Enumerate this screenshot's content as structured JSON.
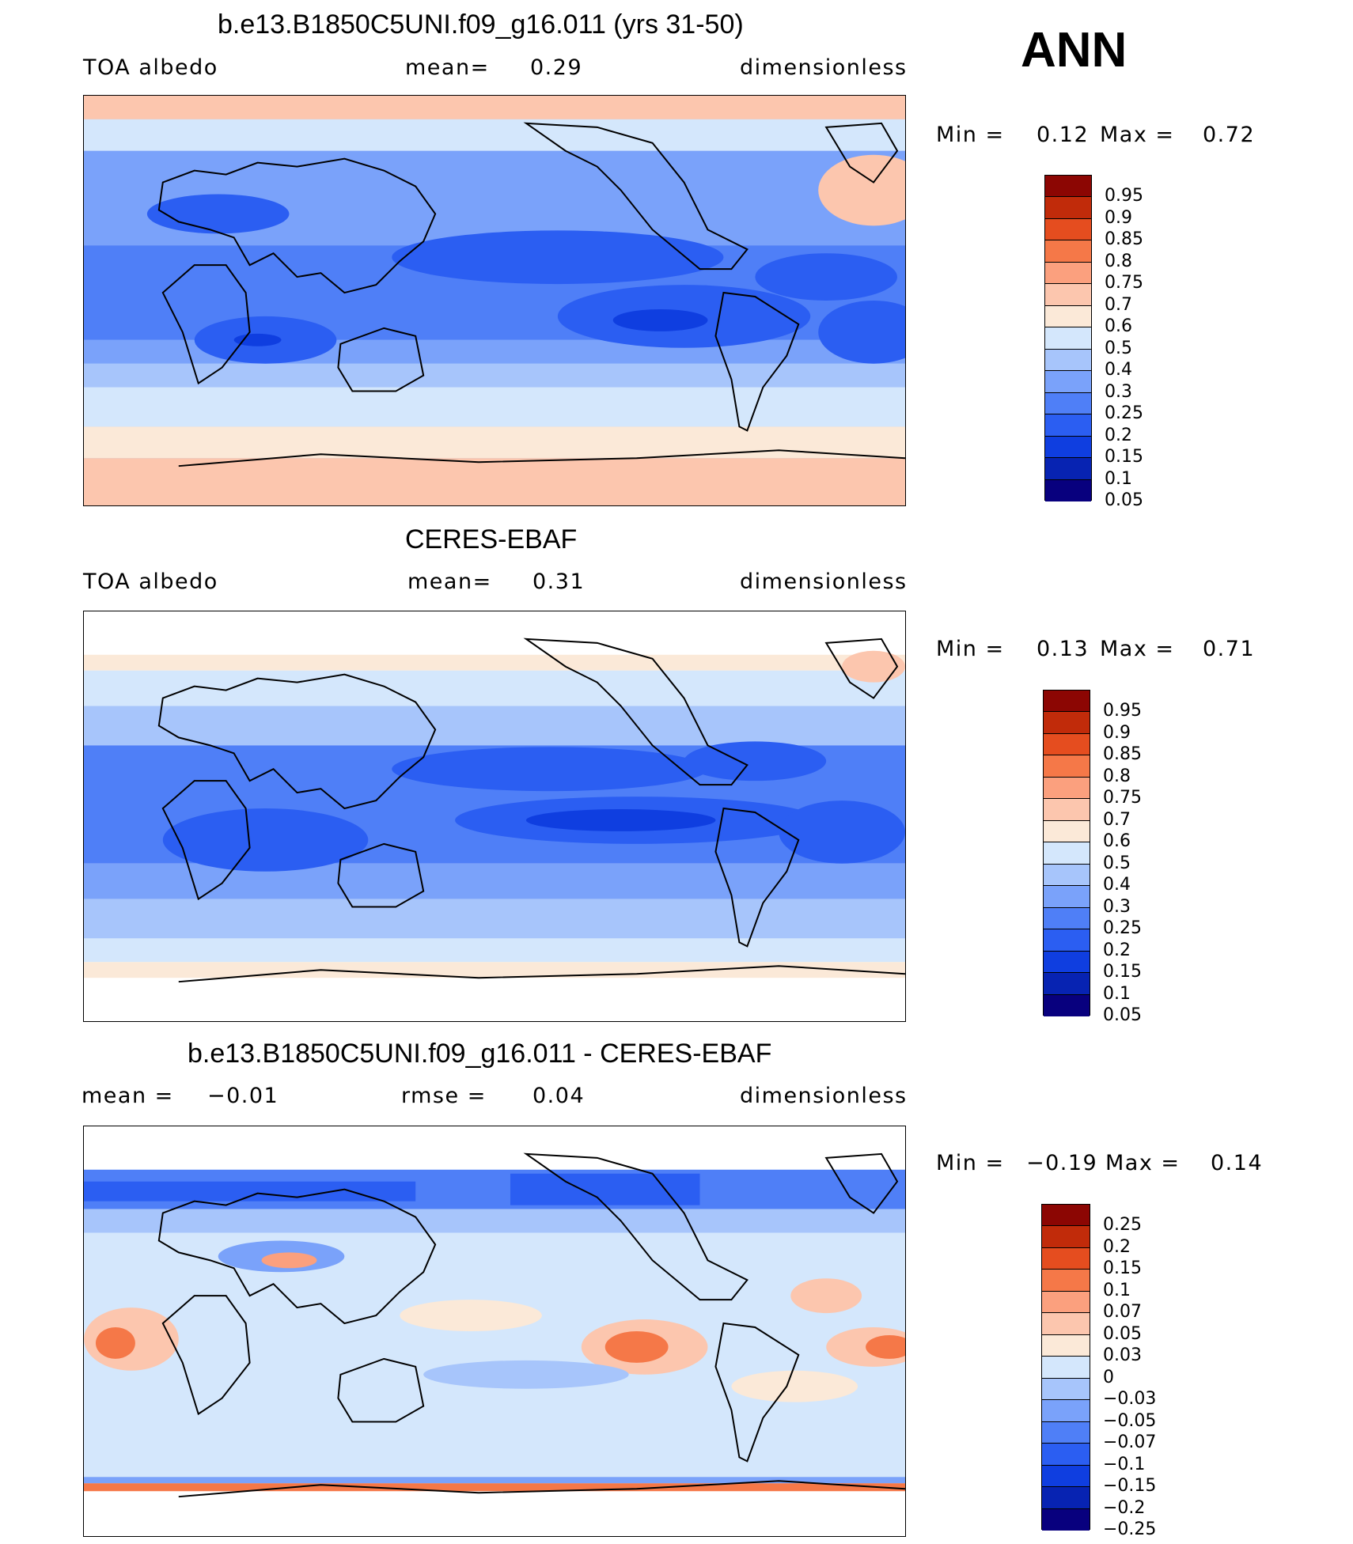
{
  "season": "ANN",
  "panels": [
    {
      "id": "model",
      "title": "b.e13.B1850C5UNI.f09_g16.011 (yrs 31-50)",
      "left_label": "TOA albedo",
      "mid_label": "mean=",
      "mid_value": "0.29",
      "right_label": "dimensionless",
      "min_label": "Min =",
      "min_value": "0.12",
      "max_label": "Max =",
      "max_value": "0.72",
      "colors": [
        "#08007e",
        "#0723b2",
        "#0f3ee0",
        "#2b5ef2",
        "#4f7ff7",
        "#7aa2fa",
        "#a7c5fb",
        "#d4e7fc",
        "#fbe9d8",
        "#fcc6ae",
        "#fba07e",
        "#f57848",
        "#e54d1f",
        "#c12b0a",
        "#8c0603"
      ],
      "ticks": [
        "0.95",
        "0.9",
        "0.85",
        "0.8",
        "0.75",
        "0.7",
        "0.6",
        "0.5",
        "0.4",
        "0.3",
        "0.25",
        "0.2",
        "0.15",
        "0.1",
        "0.05"
      ]
    },
    {
      "id": "obs",
      "title": "CERES-EBAF",
      "left_label": "TOA albedo",
      "mid_label": "mean=",
      "mid_value": "0.31",
      "right_label": "dimensionless",
      "min_label": "Min =",
      "min_value": "0.13",
      "max_label": "Max =",
      "max_value": "0.71",
      "colors": [
        "#08007e",
        "#0723b2",
        "#0f3ee0",
        "#2b5ef2",
        "#4f7ff7",
        "#7aa2fa",
        "#a7c5fb",
        "#d4e7fc",
        "#fbe9d8",
        "#fcc6ae",
        "#fba07e",
        "#f57848",
        "#e54d1f",
        "#c12b0a",
        "#8c0603"
      ],
      "ticks": [
        "0.95",
        "0.9",
        "0.85",
        "0.8",
        "0.75",
        "0.7",
        "0.6",
        "0.5",
        "0.4",
        "0.3",
        "0.25",
        "0.2",
        "0.15",
        "0.1",
        "0.05"
      ]
    },
    {
      "id": "diff",
      "title": "b.e13.B1850C5UNI.f09_g16.011 - CERES-EBAF",
      "left_label": "mean =",
      "left_value": "−0.01",
      "mid_label": "rmse =",
      "mid_value": "0.04",
      "right_label": "dimensionless",
      "min_label": "Min =",
      "min_value": "−0.19",
      "max_label": "Max =",
      "max_value": "0.14",
      "colors": [
        "#08007e",
        "#0723b2",
        "#0f3ee0",
        "#2b5ef2",
        "#4f7ff7",
        "#7aa2fa",
        "#a7c5fb",
        "#d4e7fc",
        "#fbe9d8",
        "#fcc6ae",
        "#fba07e",
        "#f57848",
        "#e54d1f",
        "#c12b0a",
        "#8c0603"
      ],
      "ticks": [
        "0.25",
        "0.2",
        "0.15",
        "0.1",
        "0.07",
        "0.05",
        "0.03",
        "0",
        "−0.03",
        "−0.05",
        "−0.07",
        "−0.1",
        "−0.15",
        "−0.2",
        "−0.25"
      ]
    }
  ]
}
